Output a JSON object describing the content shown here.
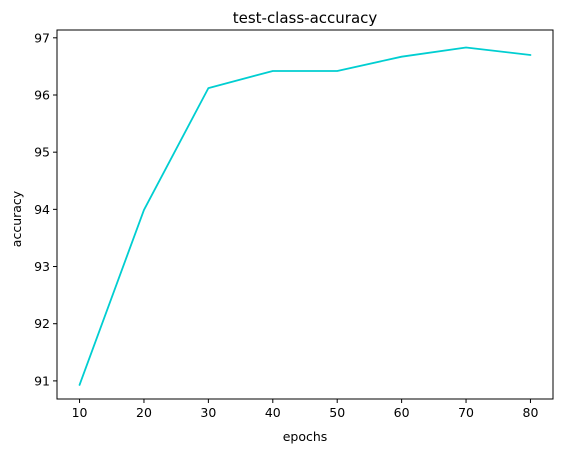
{
  "chart_data": {
    "type": "line",
    "title": "test-class-accuracy",
    "xlabel": "epochs",
    "ylabel": "accuracy",
    "xlim": [
      6.5,
      83.5
    ],
    "ylim": [
      90.6833,
      97.1367
    ],
    "xticks": [
      10,
      20,
      30,
      40,
      50,
      60,
      70,
      80
    ],
    "yticks": [
      91,
      92,
      93,
      94,
      95,
      96,
      97
    ],
    "grid": false,
    "legend": "none",
    "series": [
      {
        "name": "test-class-accuracy",
        "color": "#00ced1",
        "x": [
          10,
          20,
          30,
          40,
          50,
          60,
          70,
          80
        ],
        "y": [
          90.93,
          93.99,
          96.12,
          96.42,
          96.42,
          96.67,
          96.83,
          96.7
        ]
      }
    ]
  }
}
